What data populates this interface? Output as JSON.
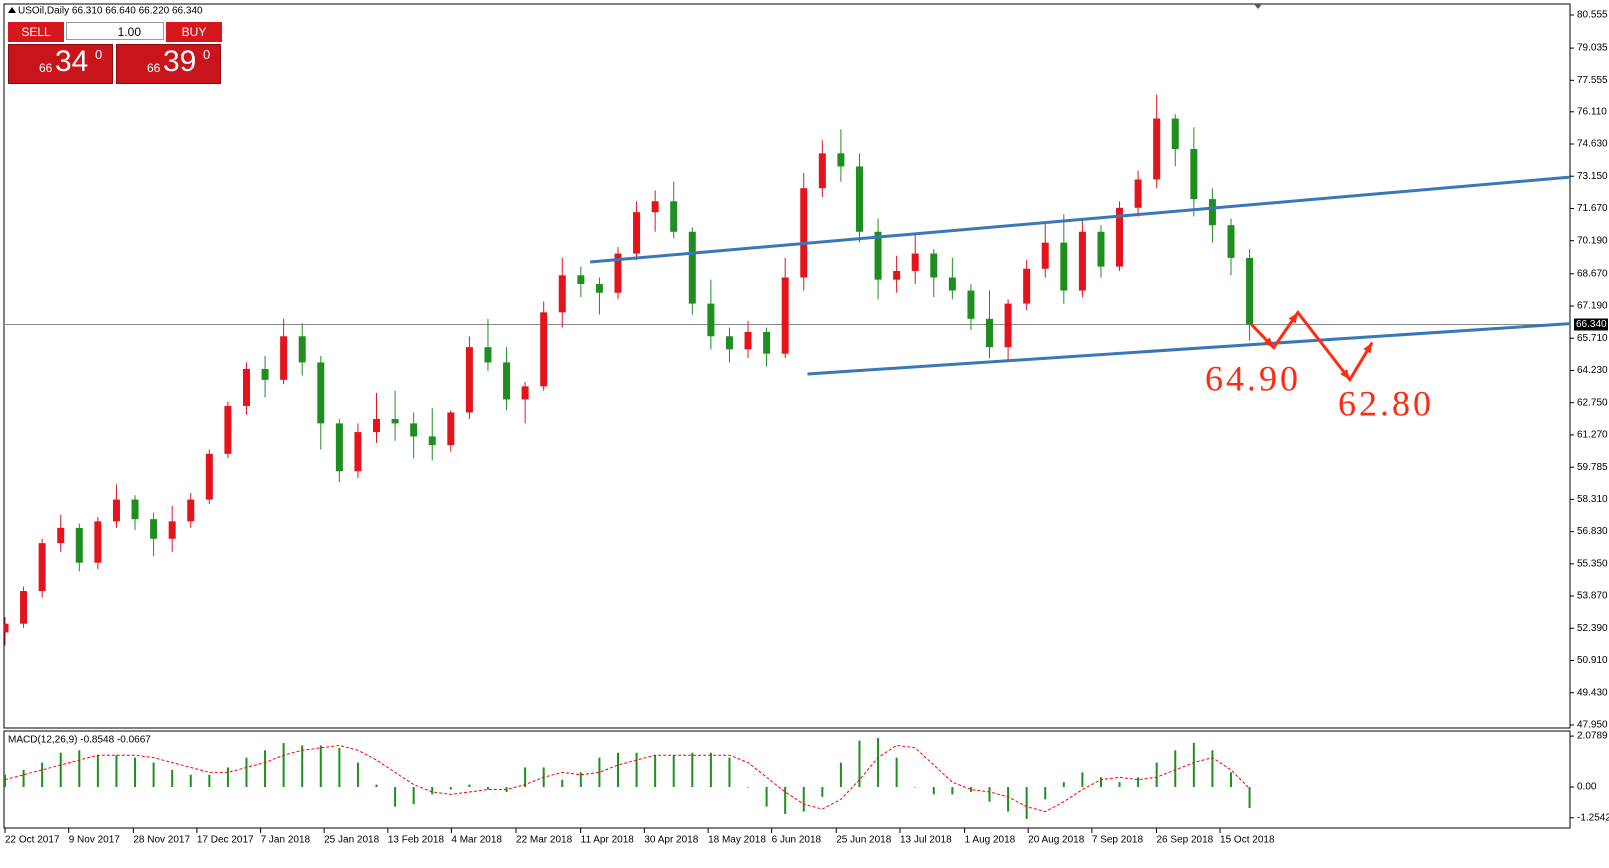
{
  "trade_panel": {
    "sell": "SELL",
    "buy": "BUY",
    "lot": "1.00",
    "sell_price": [
      "66",
      "34",
      "0"
    ],
    "buy_price": [
      "66",
      "39",
      "0"
    ]
  },
  "chart_data": [
    {
      "type": "candlestick",
      "title": "USOil,Daily  66.310 66.640 66.220 66.340",
      "up_color": "#e3141b",
      "down_color": "#1e8f1e",
      "x": [
        0,
        1,
        2,
        3,
        4,
        5,
        6,
        7,
        8,
        9,
        10,
        11,
        12,
        13,
        14,
        15,
        16,
        17,
        18,
        19,
        20,
        21,
        22,
        23,
        24,
        25,
        26,
        27,
        28,
        29,
        30,
        31,
        32,
        33,
        34,
        35,
        36,
        37,
        38,
        39,
        40,
        41,
        42,
        43,
        44,
        45,
        46,
        47,
        48,
        49,
        50,
        51,
        52,
        53,
        54,
        55,
        56,
        57,
        58,
        59,
        60,
        61,
        62,
        63,
        64,
        65,
        66,
        67
      ],
      "open": [
        52.2,
        52.6,
        54.1,
        56.3,
        57.0,
        55.4,
        57.3,
        58.3,
        57.4,
        56.5,
        57.3,
        58.3,
        60.4,
        62.6,
        64.3,
        63.8,
        65.8,
        64.6,
        61.8,
        59.6,
        61.4,
        62.0,
        61.8,
        61.2,
        60.8,
        62.3,
        65.3,
        64.6,
        62.9,
        63.5,
        66.9,
        68.6,
        68.2,
        67.8,
        69.6,
        71.5,
        72.0,
        70.6,
        67.3,
        65.8,
        65.2,
        66.0,
        65.0,
        68.5,
        72.6,
        74.2,
        73.6,
        70.6,
        68.4,
        68.8,
        69.6,
        68.5,
        67.9,
        66.6,
        65.3,
        67.3,
        68.9,
        70.1,
        67.9,
        70.6,
        69.0,
        71.7,
        73.0,
        75.8,
        74.4,
        72.1,
        70.9,
        69.4
      ],
      "high": [
        52.9,
        54.3,
        56.5,
        57.6,
        57.2,
        57.5,
        59.0,
        58.5,
        57.7,
        58.0,
        58.6,
        60.6,
        62.8,
        64.6,
        64.9,
        66.6,
        66.4,
        64.9,
        62.0,
        61.8,
        63.2,
        63.3,
        62.3,
        62.5,
        62.4,
        65.8,
        66.6,
        65.3,
        63.7,
        67.4,
        69.4,
        69.0,
        68.5,
        69.9,
        72.0,
        72.5,
        72.9,
        70.8,
        68.4,
        66.2,
        66.5,
        66.2,
        69.4,
        73.3,
        74.8,
        75.3,
        74.2,
        71.2,
        69.5,
        70.5,
        69.8,
        69.4,
        68.2,
        67.9,
        67.5,
        69.3,
        71.0,
        71.4,
        71.2,
        70.9,
        72.0,
        73.4,
        76.9,
        76.0,
        75.4,
        72.6,
        71.2,
        69.8
      ],
      "low": [
        51.6,
        52.4,
        53.8,
        55.9,
        55.0,
        55.1,
        57.0,
        56.9,
        55.7,
        55.9,
        57.0,
        58.1,
        60.2,
        62.2,
        63.0,
        63.6,
        64.0,
        60.6,
        59.1,
        59.3,
        60.9,
        61.0,
        60.2,
        60.1,
        60.5,
        62.0,
        64.2,
        62.4,
        61.8,
        63.3,
        66.2,
        67.6,
        66.8,
        67.5,
        69.3,
        70.6,
        70.3,
        66.8,
        65.2,
        64.6,
        64.8,
        64.4,
        64.8,
        67.9,
        72.2,
        72.9,
        70.1,
        67.5,
        67.8,
        68.2,
        67.6,
        67.5,
        66.1,
        64.8,
        64.7,
        67.0,
        68.5,
        67.3,
        67.6,
        68.5,
        68.8,
        71.3,
        72.6,
        73.6,
        71.3,
        70.1,
        68.6,
        65.6
      ],
      "close": [
        52.6,
        54.1,
        56.3,
        57.0,
        55.4,
        57.3,
        58.3,
        57.4,
        56.5,
        57.3,
        58.3,
        60.4,
        62.6,
        64.3,
        63.8,
        65.8,
        64.6,
        61.8,
        59.6,
        61.4,
        62.0,
        61.8,
        61.2,
        60.8,
        62.3,
        65.3,
        64.6,
        62.9,
        63.5,
        66.9,
        68.6,
        68.2,
        67.8,
        69.6,
        71.5,
        72.0,
        70.6,
        67.3,
        65.8,
        65.2,
        66.0,
        65.0,
        68.5,
        72.6,
        74.2,
        73.6,
        70.6,
        68.4,
        68.8,
        69.6,
        68.5,
        67.9,
        66.6,
        65.3,
        67.3,
        68.9,
        70.1,
        67.9,
        70.6,
        69.0,
        71.7,
        73.0,
        75.8,
        74.4,
        72.1,
        70.9,
        69.4,
        66.34
      ],
      "xlim": [
        0,
        84.25
      ],
      "ylim": [
        47.81,
        81.06
      ],
      "yticks": [
        {
          "value": 80.555,
          "label": "80.555"
        },
        {
          "value": 79.035,
          "label": "79.035"
        },
        {
          "value": 77.555,
          "label": "77.555"
        },
        {
          "value": 76.11,
          "label": "76.110"
        },
        {
          "value": 74.63,
          "label": "74.630"
        },
        {
          "value": 73.15,
          "label": "73.150"
        },
        {
          "value": 71.67,
          "label": "71.670"
        },
        {
          "value": 70.19,
          "label": "70.190"
        },
        {
          "value": 68.67,
          "label": "68.670"
        },
        {
          "value": 67.19,
          "label": "67.190"
        },
        {
          "value": 65.71,
          "label": "65.710"
        },
        {
          "value": 64.23,
          "label": "64.230"
        },
        {
          "value": 62.75,
          "label": "62.750"
        },
        {
          "value": 61.27,
          "label": "61.270"
        },
        {
          "value": 59.785,
          "label": "59.785"
        },
        {
          "value": 58.31,
          "label": "58.310"
        },
        {
          "value": 56.83,
          "label": "56.830"
        },
        {
          "value": 55.35,
          "label": "55.350"
        },
        {
          "value": 53.87,
          "label": "53.870"
        },
        {
          "value": 52.39,
          "label": "52.390"
        },
        {
          "value": 50.91,
          "label": "50.910"
        },
        {
          "value": 49.43,
          "label": "49.430"
        },
        {
          "value": 47.95,
          "label": "47.950"
        }
      ],
      "xticks": [
        {
          "value": 0,
          "label": "22 Oct 2017"
        },
        {
          "value": 3.43,
          "label": "9 Nov 2017"
        },
        {
          "value": 6.91,
          "label": "28 Nov 2017"
        },
        {
          "value": 10.33,
          "label": "17 Dec 2017"
        },
        {
          "value": 13.76,
          "label": "7 Jan 2018"
        },
        {
          "value": 17.18,
          "label": "25 Jan 2018"
        },
        {
          "value": 20.61,
          "label": "13 Feb 2018"
        },
        {
          "value": 24.03,
          "label": "4 Mar 2018"
        },
        {
          "value": 27.51,
          "label": "22 Mar 2018"
        },
        {
          "value": 30.99,
          "label": "11 Apr 2018"
        },
        {
          "value": 34.42,
          "label": "30 Apr 2018"
        },
        {
          "value": 37.85,
          "label": "18 May 2018"
        },
        {
          "value": 41.27,
          "label": "6 Jun 2018"
        },
        {
          "value": 44.75,
          "label": "25 Jun 2018"
        },
        {
          "value": 48.18,
          "label": "13 Jul 2018"
        },
        {
          "value": 51.66,
          "label": "1 Aug 2018"
        },
        {
          "value": 55.08,
          "label": "20 Aug 2018"
        },
        {
          "value": 58.51,
          "label": "7 Sep 2018"
        },
        {
          "value": 61.99,
          "label": "26 Sep 2018"
        },
        {
          "value": 65.41,
          "label": "15 Oct 2018"
        }
      ],
      "current_price": {
        "value": 66.34,
        "label": "66.340"
      },
      "trendlines": [
        {
          "color": "#3a78b5",
          "x": [
            31.5,
            84.25
          ],
          "y": [
            69.21,
            73.11
          ]
        },
        {
          "color": "#3a78b5",
          "x": [
            43.2,
            84.25
          ],
          "y": [
            64.07,
            66.38
          ]
        }
      ],
      "projection": {
        "color": "#ff2a10",
        "x": [
          67.1,
          68.3,
          69.6,
          72.4,
          73.6
        ],
        "y": [
          66.34,
          65.28,
          66.89,
          63.81,
          65.51
        ]
      },
      "annotations": [
        "64.90",
        "62.80"
      ]
    },
    {
      "type": "macd",
      "title": "MACD(12,26,9) -0.8548 -0.0667",
      "x": [
        0,
        1,
        2,
        3,
        4,
        5,
        6,
        7,
        8,
        9,
        10,
        11,
        12,
        13,
        14,
        15,
        16,
        17,
        18,
        19,
        20,
        21,
        22,
        23,
        24,
        25,
        26,
        27,
        28,
        29,
        30,
        31,
        32,
        33,
        34,
        35,
        36,
        37,
        38,
        39,
        40,
        41,
        42,
        43,
        44,
        45,
        46,
        47,
        48,
        49,
        50,
        51,
        52,
        53,
        54,
        55,
        56,
        57,
        58,
        59,
        60,
        61,
        62,
        63,
        64,
        65,
        66,
        67
      ],
      "histogram": {
        "color": "#1e8f1e",
        "values": [
          0.5,
          0.7,
          1.0,
          1.4,
          1.5,
          1.3,
          1.3,
          1.2,
          1.0,
          0.7,
          0.5,
          0.5,
          0.8,
          1.2,
          1.5,
          1.8,
          1.7,
          1.7,
          1.6,
          1.0,
          0.1,
          -0.8,
          -0.7,
          -0.3,
          -0.1,
          0.1,
          -0.1,
          -0.2,
          0.8,
          0.8,
          0.3,
          0.6,
          1.2,
          1.4,
          1.4,
          1.3,
          1.3,
          1.4,
          1.4,
          1.2,
          0.0,
          -0.8,
          -1.1,
          -1.0,
          -0.4,
          1.0,
          1.9,
          2.0,
          1.2,
          0.0,
          -0.3,
          -0.3,
          -0.2,
          -0.6,
          -1.0,
          -1.3,
          -0.5,
          0.2,
          0.6,
          0.4,
          0.2,
          0.4,
          1.0,
          1.5,
          1.8,
          1.5,
          0.6,
          -0.8548
        ]
      },
      "signal": {
        "color": "#ff0000",
        "values": [
          0.3,
          0.5,
          0.7,
          0.9,
          1.1,
          1.3,
          1.3,
          1.3,
          1.2,
          1.0,
          0.8,
          0.6,
          0.6,
          0.8,
          1.0,
          1.3,
          1.5,
          1.6,
          1.7,
          1.5,
          1.1,
          0.6,
          0.1,
          -0.2,
          -0.3,
          -0.2,
          -0.1,
          -0.1,
          0.1,
          0.4,
          0.6,
          0.5,
          0.6,
          0.9,
          1.1,
          1.3,
          1.3,
          1.3,
          1.3,
          1.3,
          1.0,
          0.4,
          -0.2,
          -0.7,
          -0.9,
          -0.5,
          0.3,
          1.2,
          1.7,
          1.6,
          0.9,
          0.2,
          -0.1,
          -0.2,
          -0.4,
          -0.8,
          -1.0,
          -0.6,
          -0.1,
          0.3,
          0.4,
          0.3,
          0.4,
          0.7,
          1.0,
          1.2,
          0.7,
          -0.0667
        ]
      },
      "xlim": [
        0,
        84.25
      ],
      "ylim": [
        -1.671,
        2.287
      ],
      "yticks": [
        {
          "value": 2.0789,
          "label": "2.0789"
        },
        {
          "value": 0,
          "label": "0.00"
        },
        {
          "value": -1.2542,
          "label": "-1.2542"
        }
      ]
    }
  ]
}
